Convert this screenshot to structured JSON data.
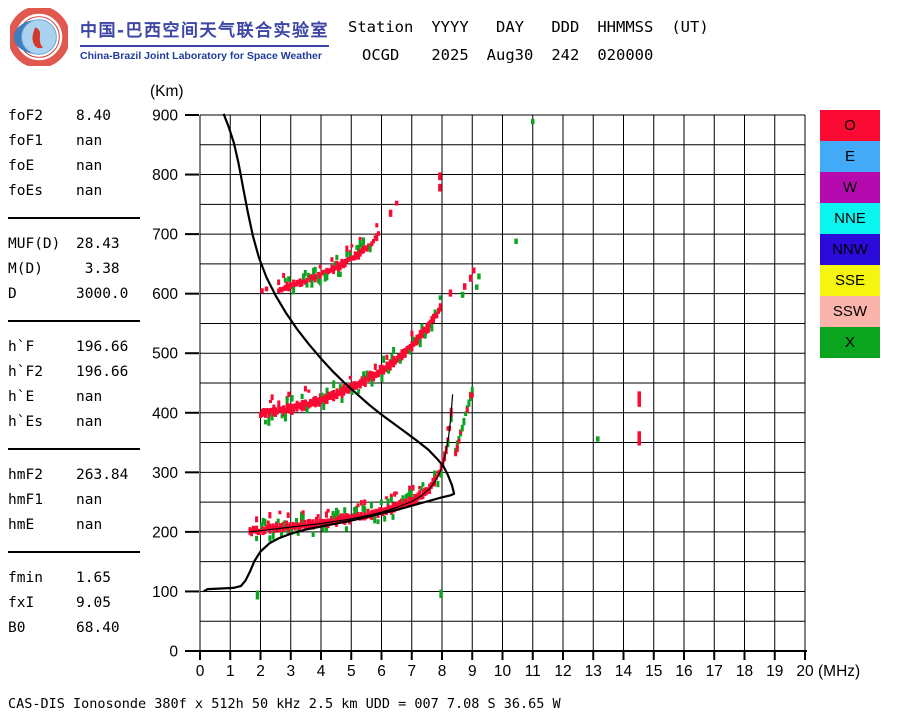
{
  "header": {
    "logo": {
      "title_zh": "中国-巴西空间天气联合实验室",
      "title_en": "China-Brazil Joint Laboratory for Space Weather"
    },
    "columns": [
      "Station",
      "YYYY",
      "DAY",
      "DDD",
      "HHMMSS",
      "(UT)"
    ],
    "values": [
      "OCGD",
      "2025",
      "Aug30",
      "242",
      "020000",
      ""
    ]
  },
  "params": {
    "groups": [
      {
        "rows": [
          {
            "label": "foF2",
            "value": "8.40"
          },
          {
            "label": "foF1",
            "value": "nan"
          },
          {
            "label": "foE",
            "value": "nan"
          },
          {
            "label": "foEs",
            "value": "nan"
          }
        ]
      },
      {
        "rows": [
          {
            "label": "MUF(D)",
            "value": "28.43"
          },
          {
            "label": "M(D)",
            "value": " 3.38"
          },
          {
            "label": "D",
            "value": "3000.0"
          }
        ]
      },
      {
        "rows": [
          {
            "label": "h`F",
            "value": "196.66"
          },
          {
            "label": "h`F2",
            "value": "196.66"
          },
          {
            "label": "h`E",
            "value": "nan"
          },
          {
            "label": "h`Es",
            "value": "nan"
          }
        ]
      },
      {
        "rows": [
          {
            "label": "hmF2",
            "value": "263.84"
          },
          {
            "label": "hmF1",
            "value": "nan"
          },
          {
            "label": "hmE",
            "value": "nan"
          }
        ]
      },
      {
        "rows": [
          {
            "label": "fmin",
            "value": "1.65"
          },
          {
            "label": "fxI",
            "value": "9.05"
          },
          {
            "label": "B0",
            "value": "68.40"
          }
        ]
      }
    ]
  },
  "legend": {
    "items": [
      {
        "label": "O",
        "color": "#fa0a32"
      },
      {
        "label": "E",
        "color": "#42aaf7"
      },
      {
        "label": "W",
        "color": "#b40aae"
      },
      {
        "label": "NNE",
        "color": "#0af5f0"
      },
      {
        "label": "NNW",
        "color": "#2a0bd9"
      },
      {
        "label": "SSE",
        "color": "#f5f50f"
      },
      {
        "label": "SSW",
        "color": "#fab4ab"
      },
      {
        "label": "X",
        "color": "#0aa41e"
      }
    ]
  },
  "footer": {
    "text": "CAS-DIS Ionosonde 380f x 512h 50 kHz 2.5 km UDD = 007 7.08 S 36.65 W"
  },
  "chart_data": {
    "type": "scatter",
    "title": "Ionogram OCGD 2025 Aug30 242 020000 UT",
    "x_axis": {
      "label": "(MHz)",
      "min": 0,
      "max": 20,
      "grid_step": 1,
      "tick_step": 1
    },
    "y_axis": {
      "label": "(Km)",
      "min": 0,
      "max": 900,
      "grid_step": 50,
      "tick_step": 100
    },
    "profiles": [
      {
        "name": "electron-density-profile",
        "stroke_width": 2.2,
        "points": [
          [
            0.12,
            100
          ],
          [
            0.25,
            104
          ],
          [
            0.7,
            105
          ],
          [
            1.1,
            106
          ],
          [
            1.35,
            109
          ],
          [
            1.5,
            118
          ],
          [
            1.65,
            133
          ],
          [
            1.8,
            151
          ],
          [
            2.0,
            167
          ],
          [
            2.3,
            181
          ],
          [
            2.6,
            189
          ],
          [
            3.0,
            197
          ],
          [
            3.5,
            204
          ],
          [
            4.0,
            209
          ],
          [
            4.5,
            214
          ],
          [
            5.0,
            219
          ],
          [
            5.5,
            225
          ],
          [
            6.0,
            231
          ],
          [
            6.5,
            237
          ],
          [
            7.0,
            244
          ],
          [
            7.5,
            251
          ],
          [
            8.0,
            258
          ],
          [
            8.25,
            261
          ],
          [
            8.4,
            264
          ],
          [
            8.33,
            278
          ],
          [
            8.2,
            295
          ],
          [
            8.05,
            310
          ],
          [
            7.85,
            322
          ],
          [
            7.55,
            338
          ],
          [
            7.2,
            352
          ],
          [
            6.8,
            367
          ],
          [
            6.4,
            382
          ],
          [
            6.0,
            397
          ],
          [
            5.6,
            413
          ],
          [
            5.2,
            431
          ],
          [
            4.8,
            449
          ],
          [
            4.4,
            469
          ],
          [
            4.0,
            491
          ],
          [
            3.6,
            515
          ],
          [
            3.2,
            541
          ],
          [
            2.85,
            567
          ],
          [
            2.5,
            597
          ],
          [
            2.2,
            627
          ],
          [
            1.95,
            660
          ],
          [
            1.75,
            697
          ],
          [
            1.58,
            737
          ],
          [
            1.42,
            779
          ],
          [
            1.27,
            820
          ],
          [
            1.12,
            853
          ],
          [
            0.95,
            880
          ],
          [
            0.78,
            902
          ]
        ]
      },
      {
        "name": "fitted-o-trace",
        "stroke_width": 1.2,
        "points": [
          [
            1.62,
            200
          ],
          [
            2.0,
            202
          ],
          [
            2.5,
            205
          ],
          [
            3.0,
            208
          ],
          [
            3.5,
            211
          ],
          [
            4.0,
            214
          ],
          [
            4.5,
            218
          ],
          [
            5.0,
            222
          ],
          [
            5.5,
            227
          ],
          [
            6.0,
            233
          ],
          [
            6.5,
            241
          ],
          [
            7.0,
            251
          ],
          [
            7.3,
            260
          ],
          [
            7.6,
            273
          ],
          [
            7.8,
            287
          ],
          [
            7.95,
            302
          ],
          [
            8.05,
            318
          ],
          [
            8.15,
            339
          ],
          [
            8.22,
            361
          ],
          [
            8.28,
            387
          ],
          [
            8.32,
            411
          ],
          [
            8.35,
            431
          ]
        ]
      }
    ],
    "echo_bands": [
      {
        "name": "F-trace-1hop-O",
        "color_key": "O",
        "fringe_key": "X",
        "thickness_km": 12,
        "fringe_ratio": 0.4,
        "mix": false,
        "points": [
          [
            1.65,
            201
          ],
          [
            2.0,
            203
          ],
          [
            2.5,
            206
          ],
          [
            3.0,
            209
          ],
          [
            3.5,
            212
          ],
          [
            4.0,
            215
          ],
          [
            4.5,
            219
          ],
          [
            5.0,
            223
          ],
          [
            5.5,
            228
          ],
          [
            6.0,
            234
          ],
          [
            6.5,
            242
          ],
          [
            7.0,
            252
          ],
          [
            7.3,
            261
          ],
          [
            7.6,
            274
          ],
          [
            7.8,
            288
          ],
          [
            7.95,
            303
          ],
          [
            8.05,
            319
          ],
          [
            8.15,
            340
          ],
          [
            8.22,
            362
          ],
          [
            8.28,
            388
          ],
          [
            8.32,
            412
          ],
          [
            8.35,
            432
          ]
        ]
      },
      {
        "name": "F-trace-1hop-X-branch",
        "color_key": "X",
        "fringe_key": "O",
        "thickness_km": 10,
        "fringe_ratio": 0.55,
        "mix": true,
        "points": [
          [
            8.45,
            335
          ],
          [
            8.55,
            352
          ],
          [
            8.65,
            370
          ],
          [
            8.75,
            390
          ],
          [
            8.85,
            410
          ],
          [
            8.95,
            428
          ],
          [
            9.02,
            440
          ]
        ]
      },
      {
        "name": "F-trace-2hop-O",
        "color_key": "O",
        "fringe_key": "X",
        "thickness_km": 13,
        "fringe_ratio": 0.35,
        "mix": false,
        "points": [
          [
            2.0,
            399
          ],
          [
            2.4,
            402
          ],
          [
            2.8,
            405
          ],
          [
            3.2,
            410
          ],
          [
            3.6,
            415
          ],
          [
            4.0,
            421
          ],
          [
            4.4,
            429
          ],
          [
            4.8,
            437
          ],
          [
            5.2,
            447
          ],
          [
            5.6,
            458
          ],
          [
            6.0,
            471
          ],
          [
            6.4,
            486
          ],
          [
            6.8,
            503
          ],
          [
            7.1,
            518
          ],
          [
            7.4,
            536
          ],
          [
            7.65,
            553
          ],
          [
            7.85,
            568
          ],
          [
            7.95,
            578
          ]
        ]
      },
      {
        "name": "upper-multiple-trace",
        "color_key": "O",
        "fringe_key": "X",
        "thickness_km": 10,
        "fringe_ratio": 0.35,
        "mix": false,
        "points": [
          [
            2.6,
            607
          ],
          [
            2.9,
            611
          ],
          [
            3.2,
            616
          ],
          [
            3.5,
            622
          ],
          [
            3.8,
            628
          ],
          [
            4.1,
            635
          ],
          [
            4.4,
            642
          ],
          [
            4.7,
            650
          ],
          [
            5.0,
            659
          ],
          [
            5.3,
            669
          ],
          [
            5.6,
            681
          ],
          [
            5.8,
            693
          ],
          [
            5.92,
            704
          ]
        ]
      }
    ],
    "echo_dashes": [
      {
        "name": "isolated-o-echoes",
        "color_key": "O",
        "points": [
          [
            2.05,
            605,
            8
          ],
          [
            2.2,
            608,
            8
          ],
          [
            6.3,
            735,
            12
          ],
          [
            6.5,
            752,
            8
          ],
          [
            7.93,
            778,
            13
          ],
          [
            7.93,
            797,
            13
          ],
          [
            8.28,
            601,
            12
          ],
          [
            8.75,
            612,
            11
          ],
          [
            8.95,
            626,
            12
          ],
          [
            9.05,
            639,
            10
          ],
          [
            14.52,
            357,
            24
          ],
          [
            14.52,
            423,
            26
          ]
        ]
      },
      {
        "name": "isolated-x-echoes",
        "color_key": "X",
        "points": [
          [
            1.9,
            94,
            15
          ],
          [
            7.97,
            96,
            14
          ],
          [
            8.68,
            598,
            10
          ],
          [
            9.15,
            611,
            9
          ],
          [
            9.22,
            629,
            10
          ],
          [
            10.45,
            688,
            9
          ],
          [
            11.0,
            889,
            9
          ],
          [
            13.15,
            356,
            9
          ]
        ]
      }
    ]
  }
}
